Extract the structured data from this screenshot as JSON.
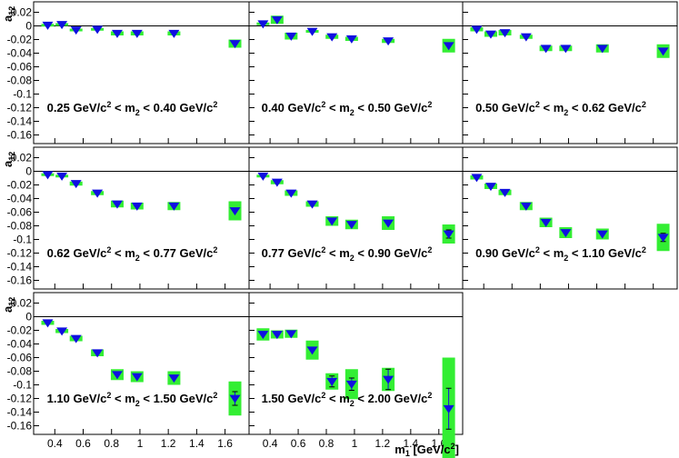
{
  "chart_data": {
    "type": "scatter",
    "ylabel": "a",
    "ylabel_sub": "12",
    "xlabel": "m",
    "xlabel_sub": "1",
    "xlabel_unit": " [GeV/c",
    "xlabel_unit_sup": "2",
    "xlabel_unit_end": "]",
    "xlim": [
      0.27,
      1.75
    ],
    "ylim": [
      -0.17,
      0.03
    ],
    "yticks": [
      "0.02",
      "0",
      "-0.02",
      "-0.04",
      "-0.06",
      "-0.08",
      "-0.1",
      "-0.12",
      "-0.14",
      "-0.16"
    ],
    "xticks": [
      "0.4",
      "0.6",
      "0.8",
      "1",
      "1.2",
      "1.4",
      "1.6"
    ],
    "colors": {
      "marker": "#1010e0",
      "syst_box": "#33ee33",
      "frame": "#000000"
    },
    "x": [
      0.35,
      0.45,
      0.55,
      0.7,
      0.84,
      0.98,
      1.24,
      1.67
    ],
    "panels": [
      {
        "label": {
          "pre": "0.25 GeV/c",
          "sup1": "2",
          "mid": " < m",
          "sub": "2",
          "post": " < 0.40 GeV/c",
          "sup2": "2"
        },
        "y": [
          0.001,
          0.002,
          -0.006,
          -0.005,
          -0.011,
          -0.011,
          -0.011,
          -0.026
        ],
        "syst": [
          0.002,
          0.002,
          0.002,
          0.002,
          0.003,
          0.003,
          0.003,
          0.006
        ],
        "stat": [
          0.001,
          0.001,
          0.001,
          0.001,
          0.001,
          0.001,
          0.001,
          0.002
        ]
      },
      {
        "label": {
          "pre": "0.40 GeV/c",
          "sup1": "2",
          "mid": " < m",
          "sub": "2",
          "post": " < 0.50 GeV/c",
          "sup2": "2"
        },
        "y": [
          0.003,
          0.009,
          -0.015,
          -0.008,
          -0.016,
          -0.019,
          -0.022,
          -0.029
        ],
        "syst": [
          0.002,
          0.006,
          0.005,
          0.002,
          0.003,
          0.003,
          0.003,
          0.01
        ],
        "stat": [
          0.001,
          0.001,
          0.001,
          0.001,
          0.001,
          0.001,
          0.001,
          0.002
        ]
      },
      {
        "label": {
          "pre": "0.50 GeV/c",
          "sup1": "2",
          "mid": " < m",
          "sub": "2",
          "post": " < 0.62 GeV/c",
          "sup2": "2"
        },
        "y": [
          -0.005,
          -0.012,
          -0.01,
          -0.016,
          -0.033,
          -0.033,
          -0.033,
          -0.037
        ],
        "syst": [
          0.003,
          0.004,
          0.004,
          0.003,
          0.004,
          0.004,
          0.006,
          0.01
        ],
        "stat": [
          0.001,
          0.001,
          0.001,
          0.001,
          0.001,
          0.001,
          0.001,
          0.002
        ]
      },
      {
        "label": {
          "pre": "0.62 GeV/c",
          "sup1": "2",
          "mid": " < m",
          "sub": "2",
          "post": " < 0.77 GeV/c",
          "sup2": "2"
        },
        "y": [
          -0.005,
          -0.007,
          -0.018,
          -0.032,
          -0.048,
          -0.051,
          -0.051,
          -0.058
        ],
        "syst": [
          0.002,
          0.002,
          0.003,
          0.003,
          0.005,
          0.005,
          0.006,
          0.014
        ],
        "stat": [
          0.001,
          0.001,
          0.001,
          0.001,
          0.001,
          0.001,
          0.001,
          0.002
        ]
      },
      {
        "label": {
          "pre": "0.77 GeV/c",
          "sup1": "2",
          "mid": " < m",
          "sub": "2",
          "post": " < 0.90 GeV/c",
          "sup2": "2"
        },
        "y": [
          -0.007,
          -0.016,
          -0.032,
          -0.048,
          -0.073,
          -0.078,
          -0.076,
          -0.092
        ],
        "syst": [
          0.002,
          0.003,
          0.004,
          0.004,
          0.007,
          0.007,
          0.01,
          0.014
        ],
        "stat": [
          0.001,
          0.001,
          0.001,
          0.001,
          0.001,
          0.001,
          0.002,
          0.006
        ]
      },
      {
        "label": {
          "pre": "0.90 GeV/c",
          "sup1": "2",
          "mid": " < m",
          "sub": "2",
          "post": " < 1.10 GeV/c",
          "sup2": "2"
        },
        "y": [
          -0.009,
          -0.022,
          -0.031,
          -0.051,
          -0.075,
          -0.09,
          -0.092,
          -0.097
        ],
        "syst": [
          0.003,
          0.004,
          0.004,
          0.006,
          0.007,
          0.008,
          0.008,
          0.02
        ],
        "stat": [
          0.001,
          0.001,
          0.001,
          0.001,
          0.002,
          0.002,
          0.002,
          0.006
        ]
      },
      {
        "label": {
          "pre": "1.10 GeV/c",
          "sup1": "2",
          "mid": " < m",
          "sub": "2",
          "post": " < 1.50 GeV/c",
          "sup2": "2"
        },
        "y": [
          -0.009,
          -0.021,
          -0.032,
          -0.053,
          -0.085,
          -0.088,
          -0.09,
          -0.12
        ],
        "syst": [
          0.003,
          0.003,
          0.004,
          0.005,
          0.008,
          0.008,
          0.01,
          0.025
        ],
        "stat": [
          0.001,
          0.001,
          0.001,
          0.001,
          0.002,
          0.002,
          0.002,
          0.01
        ]
      },
      {
        "label": {
          "pre": "1.50 GeV/c",
          "sup1": "2",
          "mid": " < m",
          "sub": "2",
          "post": " < 2.00 GeV/c",
          "sup2": "2"
        },
        "y": [
          -0.026,
          -0.026,
          -0.025,
          -0.049,
          -0.095,
          -0.099,
          -0.092,
          -0.135
        ],
        "syst": [
          0.009,
          0.006,
          0.006,
          0.014,
          0.012,
          0.022,
          0.017,
          0.075
        ],
        "stat": [
          0.003,
          0.003,
          0.003,
          0.004,
          0.008,
          0.009,
          0.015,
          0.03
        ]
      }
    ]
  }
}
